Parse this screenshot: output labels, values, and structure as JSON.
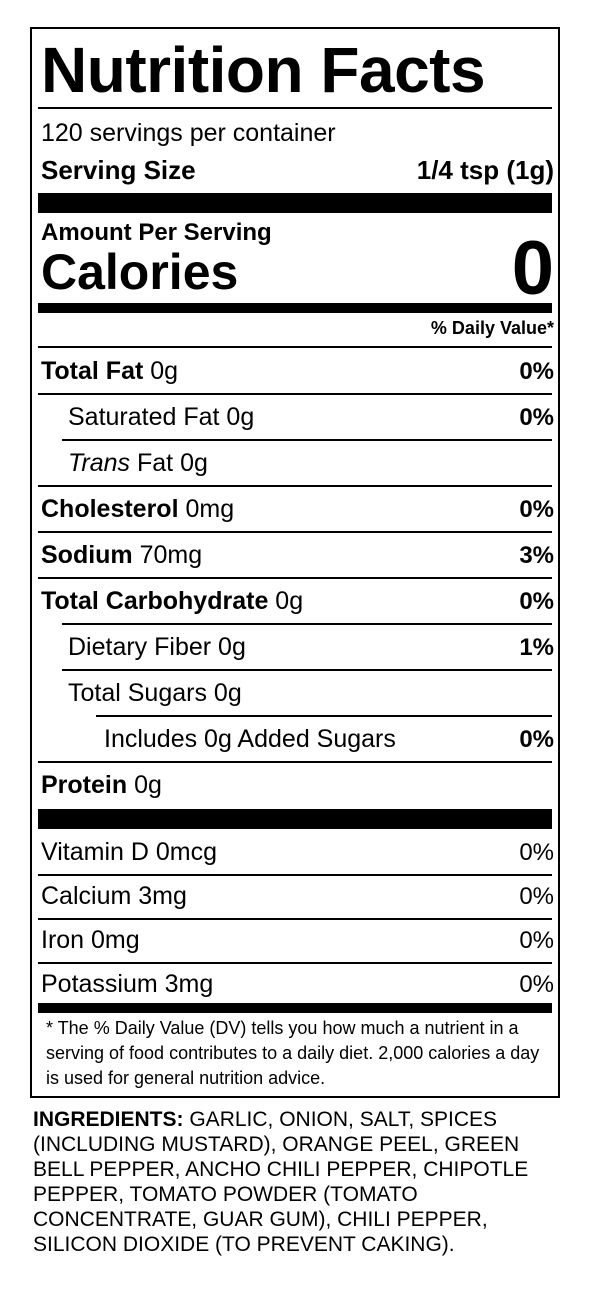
{
  "label": {
    "title": "Nutrition Facts",
    "servings_per_container": "120 servings per container",
    "serving_size_label": "Serving Size",
    "serving_size_value": "1/4 tsp (1g)",
    "amount_per_serving": "Amount Per Serving",
    "calories_label": "Calories",
    "calories_value": "0",
    "daily_value_header": "% Daily Value*"
  },
  "nutrients": [
    {
      "name": "Total Fat",
      "amount": " 0g",
      "dv": "0%"
    },
    {
      "name": "Saturated Fat",
      "amount": " 0g",
      "dv": "0%"
    },
    {
      "name": "Trans",
      "amount": " Fat 0g",
      "dv": ""
    },
    {
      "name": "Cholesterol",
      "amount": " 0mg",
      "dv": "0%"
    },
    {
      "name": "Sodium",
      "amount": " 70mg",
      "dv": "3%"
    },
    {
      "name": "Total Carbohydrate",
      "amount": " 0g",
      "dv": "0%"
    },
    {
      "name": "Dietary Fiber",
      "amount": " 0g",
      "dv": "1%"
    },
    {
      "name": "Total Sugars",
      "amount": " 0g",
      "dv": ""
    },
    {
      "name": "Includes 0g Added Sugars",
      "amount": "",
      "dv": "0%"
    },
    {
      "name": "Protein",
      "amount": " 0g",
      "dv": ""
    }
  ],
  "vitamins": [
    {
      "name": "Vitamin D 0mcg",
      "dv": "0%"
    },
    {
      "name": "Calcium 3mg",
      "dv": "0%"
    },
    {
      "name": "Iron 0mg",
      "dv": "0%"
    },
    {
      "name": "Potassium 3mg",
      "dv": "0%"
    }
  ],
  "footnote": "* The % Daily Value (DV) tells you how much a nutrient in a serving of food contributes to a daily diet. 2,000 calories a day is used for general nutrition advice.",
  "ingredients": {
    "label": "INGREDIENTS:",
    "text": " GARLIC, ONION, SALT, SPICES (INCLUDING MUSTARD), ORANGE PEEL, GREEN BELL PEPPER, ANCHO CHILI PEPPER, CHIPOTLE PEPPER, TOMATO POWDER (TOMATO CONCENTRATE, GUAR GUM), CHILI PEPPER, SILICON DIOXIDE (TO PREVENT CAKING)."
  }
}
